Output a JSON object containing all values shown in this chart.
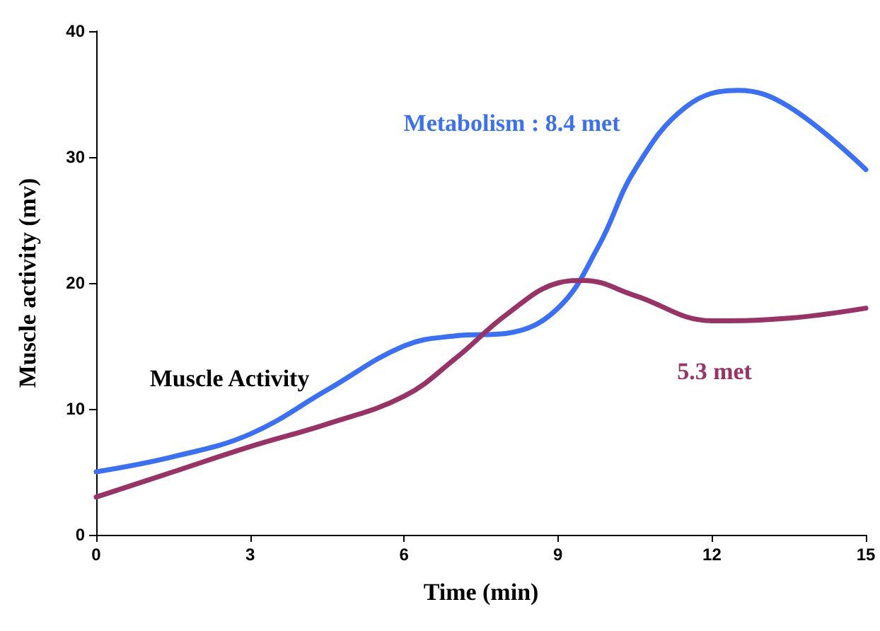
{
  "chart_data": {
    "type": "line",
    "xlabel": "Time (min)",
    "ylabel": "Muscle activity (mv)",
    "xlim": [
      0,
      15
    ],
    "xticks": [
      0,
      3,
      6,
      9,
      12,
      15
    ],
    "ylim": [
      0,
      40
    ],
    "yticks": [
      0,
      10,
      20,
      30,
      40
    ],
    "grid": false,
    "legend": false,
    "marker": "none",
    "line_style": "solid",
    "annotations": [
      "Muscle Activity"
    ],
    "series": [
      {
        "name": "Metabolism : 8.4 met",
        "color": "#3a6ff7",
        "x": [
          0,
          1.5,
          3,
          4.5,
          6,
          7,
          8,
          9,
          9.8,
          10.5,
          11.5,
          12.5,
          13.5,
          15
        ],
        "values": [
          5,
          6.2,
          8,
          11.5,
          15,
          15.8,
          16,
          18,
          23,
          29,
          34,
          35.3,
          34,
          29
        ]
      },
      {
        "name": "5.3 met",
        "color": "#993366",
        "x": [
          0,
          1.5,
          3,
          4.5,
          6,
          7,
          8,
          9,
          9.5,
          10.5,
          12,
          13.5,
          15
        ],
        "values": [
          3,
          5,
          7,
          8.8,
          11,
          14,
          17.5,
          20,
          20.2,
          19,
          17,
          17.2,
          18
        ]
      }
    ]
  }
}
